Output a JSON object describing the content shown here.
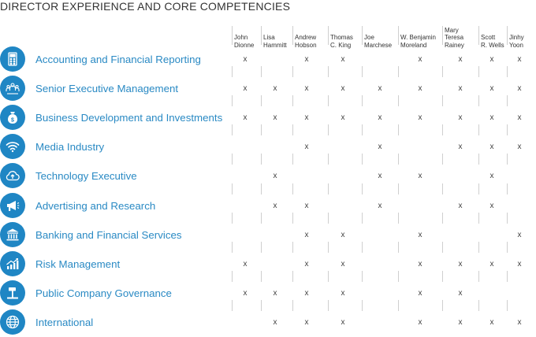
{
  "title": "DIRECTOR EXPERIENCE AND CORE COMPETENCIES",
  "directors": [
    "John\nDionne",
    "Lisa\nHammitt",
    "Andrew\nHobson",
    "Thomas\nC. King",
    "Joe\nMarchese",
    "W. Benjamin\nMoreland",
    "Mary\nTeresa\nRainey",
    "Scott\nR. Wells",
    "Jinhy\nYoon"
  ],
  "mark_symbol": "x",
  "colors": {
    "accent": "#1f86c4",
    "label": "#2a8ac4"
  },
  "competencies": [
    {
      "label": "Accounting and Financial Reporting",
      "icon": "calculator-icon",
      "marks": [
        1,
        0,
        1,
        1,
        0,
        1,
        1,
        1,
        1
      ]
    },
    {
      "label": "Senior Executive Management",
      "icon": "team-icon",
      "marks": [
        1,
        1,
        1,
        1,
        1,
        1,
        1,
        1,
        1
      ]
    },
    {
      "label": "Business Development and Investments",
      "icon": "money-bag-icon",
      "marks": [
        1,
        1,
        1,
        1,
        1,
        1,
        1,
        1,
        1
      ]
    },
    {
      "label": "Media Industry",
      "icon": "wifi-icon",
      "marks": [
        0,
        0,
        1,
        0,
        1,
        0,
        1,
        1,
        1
      ]
    },
    {
      "label": "Technology Executive",
      "icon": "cloud-upload-icon",
      "marks": [
        0,
        1,
        0,
        0,
        1,
        1,
        0,
        1,
        0
      ]
    },
    {
      "label": "Advertising and Research",
      "icon": "megaphone-icon",
      "marks": [
        0,
        1,
        1,
        0,
        1,
        0,
        1,
        1,
        0
      ]
    },
    {
      "label": "Banking and Financial Services",
      "icon": "bank-icon",
      "marks": [
        0,
        0,
        1,
        1,
        0,
        1,
        0,
        0,
        1
      ]
    },
    {
      "label": "Risk Management",
      "icon": "growth-chart-icon",
      "marks": [
        1,
        0,
        1,
        1,
        0,
        1,
        1,
        1,
        1
      ]
    },
    {
      "label": "Public Company Governance",
      "icon": "gavel-icon",
      "marks": [
        1,
        1,
        1,
        1,
        0,
        1,
        1,
        0,
        0
      ]
    },
    {
      "label": "International",
      "icon": "globe-icon",
      "marks": [
        0,
        1,
        1,
        1,
        0,
        1,
        1,
        1,
        1
      ]
    }
  ]
}
